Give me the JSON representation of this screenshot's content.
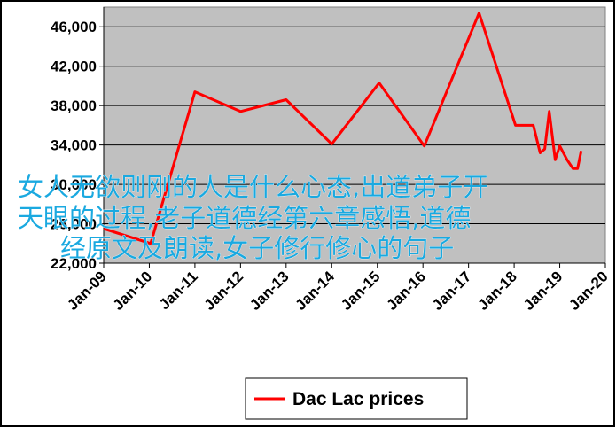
{
  "chart_data": {
    "type": "line",
    "x": [
      2009.0,
      2010.03,
      2011.0,
      2012.0,
      2013.0,
      2014.0,
      2015.04,
      2016.03,
      2017.23,
      2018.03,
      2018.42,
      2018.57,
      2018.67,
      2018.77,
      2018.9,
      2019.0,
      2019.16,
      2019.29,
      2019.39,
      2019.47
    ],
    "series": [
      {
        "name": "Dac Lac prices",
        "color": "#ff0000",
        "values": [
          25500,
          24000,
          39400,
          37400,
          38600,
          34100,
          40300,
          33900,
          47400,
          36000,
          36000,
          33200,
          33600,
          37400,
          32500,
          33900,
          32500,
          31600,
          31600,
          33400
        ]
      }
    ],
    "xlim": [
      2009,
      2020
    ],
    "xticks": [
      {
        "value": 2009,
        "label": "Jan-09"
      },
      {
        "value": 2010,
        "label": "Jan-10"
      },
      {
        "value": 2011,
        "label": "Jan-11"
      },
      {
        "value": 2012,
        "label": "Jan-12"
      },
      {
        "value": 2013,
        "label": "Jan-13"
      },
      {
        "value": 2014,
        "label": "Jan-14"
      },
      {
        "value": 2015,
        "label": "Jan-15"
      },
      {
        "value": 2016,
        "label": "Jan-16"
      },
      {
        "value": 2017,
        "label": "Jan-17"
      },
      {
        "value": 2018,
        "label": "Jan-18"
      },
      {
        "value": 2019,
        "label": "Jan-19"
      },
      {
        "value": 2020,
        "label": "Jan-20"
      }
    ],
    "ylim": [
      22000,
      48000
    ],
    "yticks": [
      {
        "value": 22000,
        "label": "22,000"
      },
      {
        "value": 26000,
        "label": "26,000"
      },
      {
        "value": 30000,
        "label": "30,000"
      },
      {
        "value": 34000,
        "label": "34,000"
      },
      {
        "value": 38000,
        "label": "38,000"
      },
      {
        "value": 42000,
        "label": "42,000"
      },
      {
        "value": 46000,
        "label": "46,000"
      }
    ],
    "grid": true
  },
  "watermark": {
    "lines": [
      "女人无欲则刚的人是什么心态,出道弟子开",
      "天眼的过程,老子道德经第六章感悟,道德",
      "经原文及朗读,女子修行修心的句子"
    ]
  }
}
